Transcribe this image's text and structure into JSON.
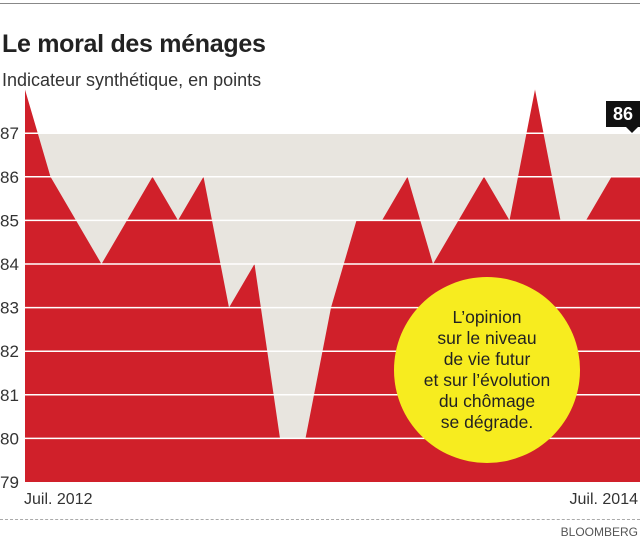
{
  "chart_data": {
    "type": "area",
    "title": "Le moral des ménages",
    "subtitle": "Indicateur synthétique, en points",
    "x": [
      "2012-07",
      "2012-08",
      "2012-09",
      "2012-10",
      "2012-11",
      "2012-12",
      "2013-01",
      "2013-02",
      "2013-03",
      "2013-04",
      "2013-05",
      "2013-06",
      "2013-07",
      "2013-08",
      "2013-09",
      "2013-10",
      "2013-11",
      "2013-12",
      "2014-01",
      "2014-02",
      "2014-03",
      "2014-04",
      "2014-05",
      "2014-06",
      "2014-07"
    ],
    "values": [
      88,
      86,
      85,
      84,
      85,
      86,
      85,
      86,
      83,
      84,
      80,
      80,
      83,
      85,
      85,
      86,
      84,
      85,
      86,
      85,
      88,
      85,
      85,
      86,
      86
    ],
    "x_tick_labels": [
      "Juil. 2012",
      "Juil. 2014"
    ],
    "y_ticks": [
      79,
      80,
      81,
      82,
      83,
      84,
      85,
      86,
      87
    ],
    "ylim": [
      79,
      88
    ],
    "reference_band_top": 87,
    "grid": true,
    "last_value_label": "86",
    "annotation": "L’opinion\nsur le niveau\nde vie futur\net sur l’évolution\ndu chômage\nse dégrade.",
    "source": "BLOOMBERG",
    "colors": {
      "area": "#d0202a",
      "band": "#e8e5df",
      "grid": "#ffffff",
      "annotation_bg": "#f7ec1f",
      "callout_bg": "#111111"
    }
  }
}
